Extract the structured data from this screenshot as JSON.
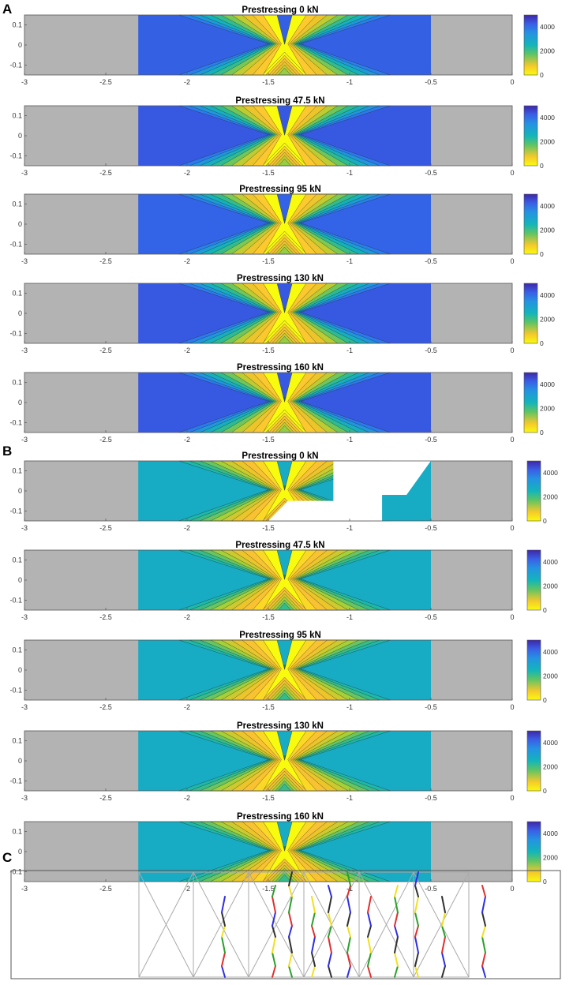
{
  "panels": [
    {
      "letter": "A"
    },
    {
      "letter": "B"
    },
    {
      "letter": "C"
    }
  ],
  "chart_data": [
    {
      "type": "heatmap",
      "group": "A",
      "title": "Prestressing 0 kN",
      "xlim": [
        -3,
        0
      ],
      "ylim": [
        -0.15,
        0.15
      ],
      "x_ticks": [
        "-3",
        "-2.5",
        "-2",
        "-1.5",
        "-1",
        "-0.5",
        "0"
      ],
      "y_ticks": [
        "0.1",
        "0",
        "-0.1"
      ],
      "colorbar": {
        "ticks": [
          "4000",
          "2000",
          "0"
        ],
        "range": [
          0,
          5000
        ]
      },
      "colored_region": [
        -2.3,
        -0.5
      ],
      "peak_x": -1.4,
      "peak_value": 0,
      "background_value": 4300
    },
    {
      "type": "heatmap",
      "group": "A",
      "title": "Prestressing 47.5 kN",
      "xlim": [
        -3,
        0
      ],
      "ylim": [
        -0.15,
        0.15
      ],
      "x_ticks": [
        "-3",
        "-2.5",
        "-2",
        "-1.5",
        "-1",
        "-0.5",
        "0"
      ],
      "y_ticks": [
        "0.1",
        "0",
        "-0.1"
      ],
      "colorbar": {
        "ticks": [
          "4000",
          "2000",
          "0"
        ],
        "range": [
          0,
          5000
        ]
      },
      "colored_region": [
        -2.3,
        -0.5
      ],
      "peak_x": -1.4,
      "peak_value": 0,
      "background_value": 4400
    },
    {
      "type": "heatmap",
      "group": "A",
      "title": "Prestressing 95 kN",
      "xlim": [
        -3,
        0
      ],
      "ylim": [
        -0.15,
        0.15
      ],
      "x_ticks": [
        "-3",
        "-2.5",
        "-2",
        "-1.5",
        "-1",
        "-0.5",
        "0"
      ],
      "y_ticks": [
        "0.1",
        "0",
        "-0.1"
      ],
      "colorbar": {
        "ticks": [
          "4000",
          "2000",
          "0"
        ],
        "range": [
          0,
          5000
        ]
      },
      "colored_region": [
        -2.3,
        -0.5
      ],
      "peak_x": -1.4,
      "peak_value": 0,
      "background_value": 4250
    },
    {
      "type": "heatmap",
      "group": "A",
      "title": "Prestressing 130 kN",
      "xlim": [
        -3,
        0
      ],
      "ylim": [
        -0.15,
        0.15
      ],
      "x_ticks": [
        "-3",
        "-2.5",
        "-2",
        "-1.5",
        "-1",
        "-0.5",
        "0"
      ],
      "y_ticks": [
        "0.1",
        "0",
        "-0.1"
      ],
      "colorbar": {
        "ticks": [
          "4000",
          "2000",
          "0"
        ],
        "range": [
          0,
          5000
        ]
      },
      "colored_region": [
        -2.3,
        -0.5
      ],
      "peak_x": -1.4,
      "peak_value": 0,
      "background_value": 4400
    },
    {
      "type": "heatmap",
      "group": "A",
      "title": "Prestressing 160 kN",
      "xlim": [
        -3,
        0
      ],
      "ylim": [
        -0.15,
        0.15
      ],
      "x_ticks": [
        "-3",
        "-2.5",
        "-2",
        "-1.5",
        "-1",
        "-0.5",
        "0"
      ],
      "y_ticks": [
        "0.1",
        "0",
        "-0.1"
      ],
      "colorbar": {
        "ticks": [
          "4000",
          "2000",
          "0"
        ],
        "range": [
          0,
          5000
        ]
      },
      "colored_region": [
        -2.3,
        -0.5
      ],
      "peak_x": -1.4,
      "peak_value": 0,
      "background_value": 4400
    },
    {
      "type": "heatmap",
      "group": "B",
      "title": "Prestressing 0 kN",
      "xlim": [
        -3,
        0
      ],
      "ylim": [
        -0.15,
        0.15
      ],
      "x_ticks": [
        "-3",
        "-2.5",
        "-2",
        "-1.5",
        "-1",
        "-0.5",
        "0"
      ],
      "y_ticks": [
        "0.1",
        "0",
        "-0.1"
      ],
      "colorbar": {
        "ticks": [
          "4000",
          "2000",
          "0"
        ],
        "range": [
          0,
          5000
        ]
      },
      "colored_region": [
        -2.3,
        -0.5
      ],
      "peak_x": -1.4,
      "peak_value": 0,
      "background_value": 3000,
      "missing_data": true
    },
    {
      "type": "heatmap",
      "group": "B",
      "title": "Prestressing 47.5 kN",
      "xlim": [
        -3,
        0
      ],
      "ylim": [
        -0.15,
        0.15
      ],
      "x_ticks": [
        "-3",
        "-2.5",
        "-2",
        "-1.5",
        "-1",
        "-0.5",
        "0"
      ],
      "y_ticks": [
        "0.1",
        "0",
        "-0.1"
      ],
      "colorbar": {
        "ticks": [
          "4000",
          "2000",
          "0"
        ],
        "range": [
          0,
          5000
        ]
      },
      "colored_region": [
        -2.3,
        -0.5
      ],
      "peak_x": -1.4,
      "peak_value": 0,
      "background_value": 3000
    },
    {
      "type": "heatmap",
      "group": "B",
      "title": "Prestressing 95 kN",
      "xlim": [
        -3,
        0
      ],
      "ylim": [
        -0.15,
        0.15
      ],
      "x_ticks": [
        "-3",
        "-2.5",
        "-2",
        "-1.5",
        "-1",
        "-0.5",
        "0"
      ],
      "y_ticks": [
        "0.1",
        "0",
        "-0.1"
      ],
      "colorbar": {
        "ticks": [
          "4000",
          "2000",
          "0"
        ],
        "range": [
          0,
          5000
        ]
      },
      "colored_region": [
        -2.3,
        -0.5
      ],
      "peak_x": -1.4,
      "peak_value": 0,
      "background_value": 3000
    },
    {
      "type": "heatmap",
      "group": "B",
      "title": "Prestressing 130 kN",
      "xlim": [
        -3,
        0
      ],
      "ylim": [
        -0.15,
        0.15
      ],
      "x_ticks": [
        "-3",
        "-2.5",
        "-2",
        "-1.5",
        "-1",
        "-0.5",
        "0"
      ],
      "y_ticks": [
        "0.1",
        "0",
        "-0.1"
      ],
      "colorbar": {
        "ticks": [
          "4000",
          "2000",
          "0"
        ],
        "range": [
          0,
          5000
        ]
      },
      "colored_region": [
        -2.3,
        -0.5
      ],
      "peak_x": -1.4,
      "peak_value": 0,
      "background_value": 3000
    },
    {
      "type": "heatmap",
      "group": "B",
      "title": "Prestressing 160 kN",
      "xlim": [
        -3,
        0
      ],
      "ylim": [
        -0.15,
        0.15
      ],
      "x_ticks": [
        "-3",
        "-2.5",
        "-2",
        "-1.5",
        "-1",
        "-0.5",
        "0"
      ],
      "y_ticks": [
        "0.1",
        "0",
        "-0.1"
      ],
      "colorbar": {
        "ticks": [
          "4000",
          "2000",
          "0"
        ],
        "range": [
          0,
          5000
        ]
      },
      "colored_region": [
        -2.3,
        -0.5
      ],
      "peak_x": -1.4,
      "peak_value": 0,
      "background_value": 3000
    }
  ],
  "colors": {
    "gray": "#b3b3b3",
    "gradient": [
      "#f9fb0e",
      "#fcc134",
      "#e7c628",
      "#a4d038",
      "#3fbe7e",
      "#12b6b6",
      "#1f9bd9",
      "#2a7bf0",
      "#3856e0",
      "#3e26a8"
    ],
    "crack_colors": [
      "#2f2fe0",
      "#e03030",
      "#2ca02c",
      "#f0e020",
      "#303030"
    ]
  }
}
